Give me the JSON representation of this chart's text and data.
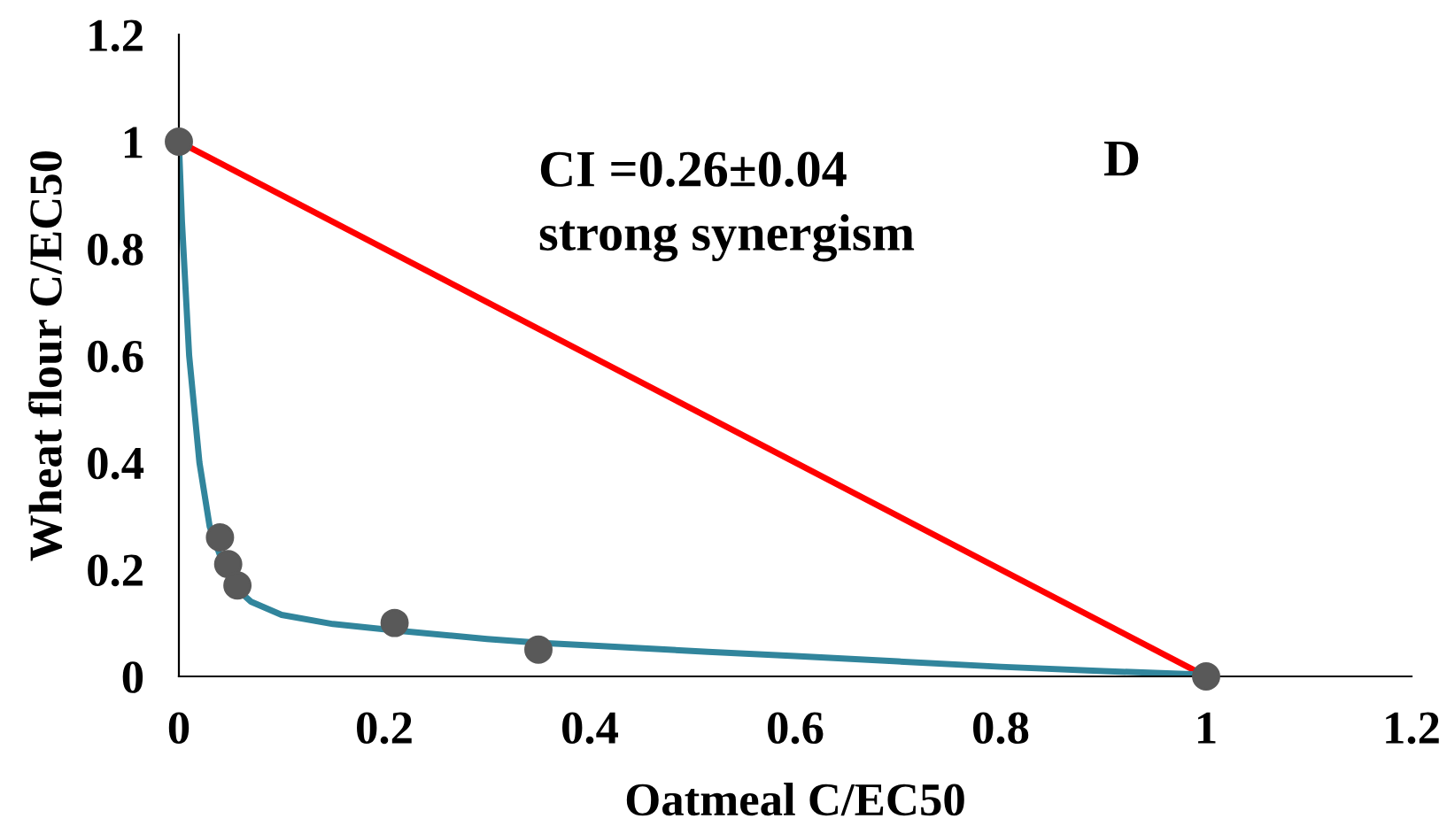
{
  "chart_data": {
    "type": "scatter",
    "xlabel": "Oatmeal C/EC50",
    "ylabel": "Wheat flour C/EC50",
    "xlim": [
      0,
      1.2
    ],
    "ylim": [
      0,
      1.2
    ],
    "xticks": [
      0,
      0.2,
      0.4,
      0.6,
      0.8,
      1,
      1.2
    ],
    "yticks": [
      0,
      0.2,
      0.4,
      0.6,
      0.8,
      1,
      1.2
    ],
    "grid": false,
    "series": [
      {
        "type": "line",
        "color": "#ff0000",
        "x": [
          0,
          1
        ],
        "values": [
          1,
          0
        ],
        "marker": "none",
        "line_style": "solid"
      },
      {
        "type": "line",
        "color": "#31859c",
        "x": [
          0,
          0.003,
          0.01,
          0.02,
          0.03,
          0.045,
          0.055,
          0.07,
          0.1,
          0.15,
          0.21,
          0.3,
          0.35,
          0.4,
          0.515,
          0.6,
          0.7,
          0.8,
          0.9,
          1
        ],
        "values": [
          1,
          0.85,
          0.6,
          0.4,
          0.28,
          0.2,
          0.166,
          0.14,
          0.115,
          0.098,
          0.086,
          0.07,
          0.063,
          0.058,
          0.046,
          0.038,
          0.028,
          0.018,
          0.01,
          0.003
        ],
        "marker": "none",
        "line_style": "solid"
      },
      {
        "color": "#595959",
        "x": [
          0,
          0.04,
          0.048,
          0.057,
          0.21,
          0.35,
          1
        ],
        "values": [
          1,
          0.26,
          0.21,
          0.17,
          0.1,
          0.05,
          0
        ],
        "marker": "circle"
      }
    ],
    "annotations": [
      "CI =0.26±0.04",
      "strong synergism",
      "D"
    ]
  }
}
